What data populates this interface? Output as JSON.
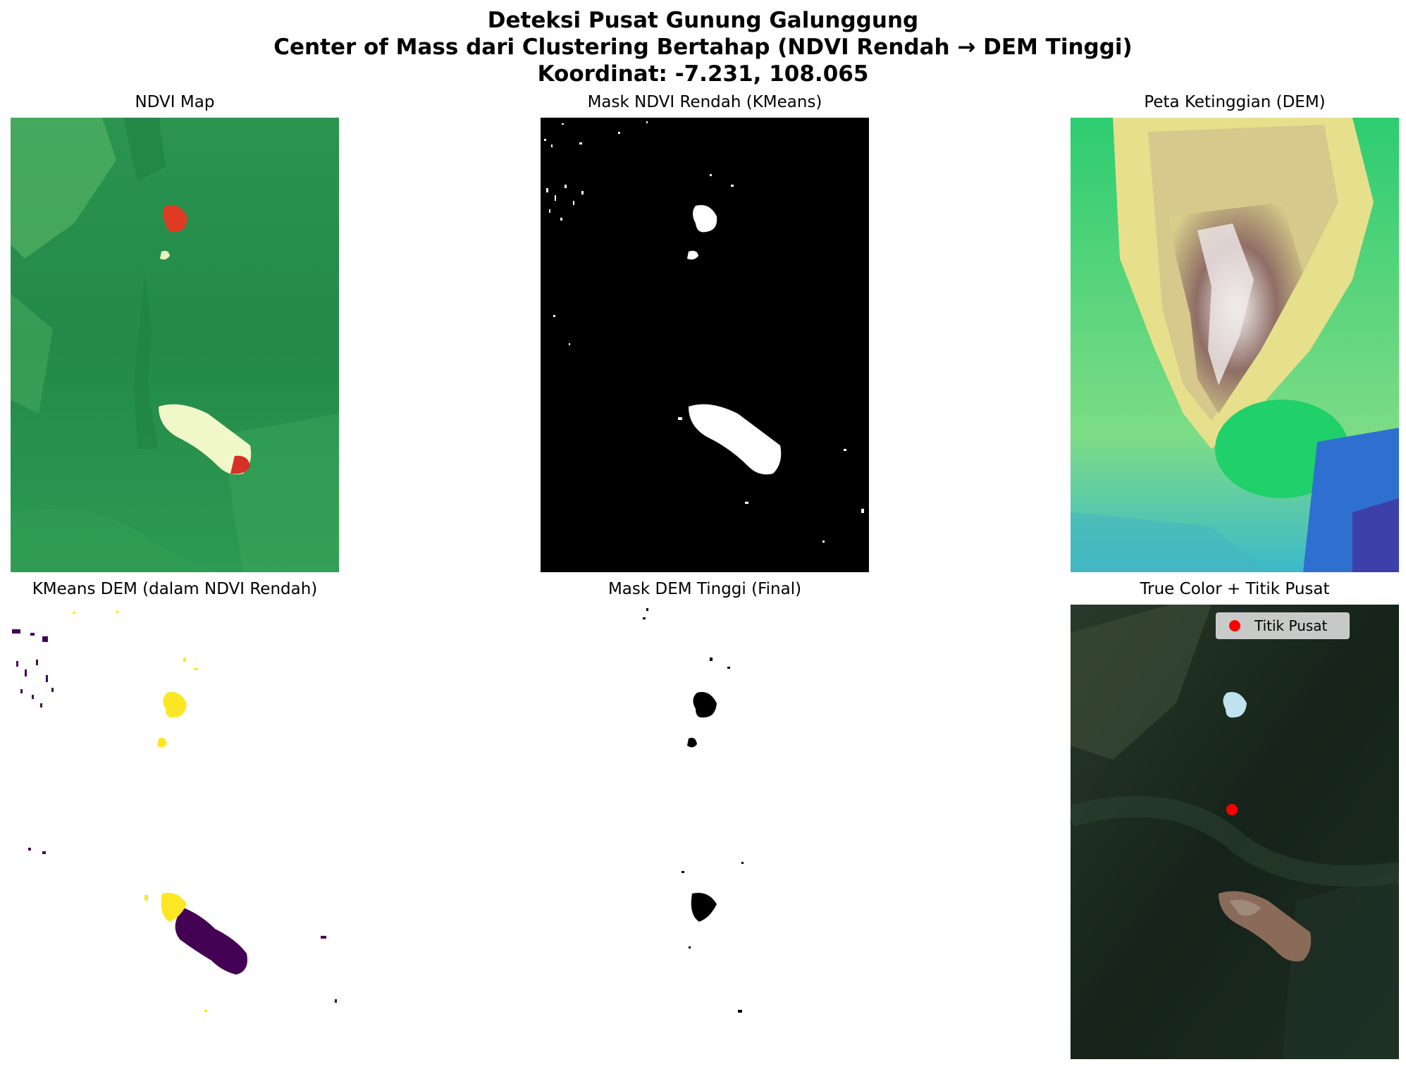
{
  "figure": {
    "title_line1": "Deteksi Pusat Gunung Galunggung",
    "title_line2": "Center of Mass dari Clustering Bertahap (NDVI Rendah → DEM Tinggi)",
    "title_line3": "Koordinat: -7.231, 108.065"
  },
  "panels": [
    {
      "title": "NDVI Map",
      "colormap": "RdYlGn"
    },
    {
      "title": "Mask NDVI Rendah (KMeans)",
      "colormap": "gray"
    },
    {
      "title": "Peta Ketinggian (DEM)",
      "colormap": "terrain"
    },
    {
      "title": "KMeans DEM (dalam NDVI Rendah)",
      "colormap": "viridis"
    },
    {
      "title": "Mask DEM Tinggi (Final)",
      "colormap": "gray"
    },
    {
      "title": "True Color + Titik Pusat",
      "colormap": "rgb"
    }
  ],
  "legend": {
    "label": "Titik Pusat",
    "marker_color": "#ff0000"
  },
  "colors": {
    "ndvi_green": "#2e9e56",
    "ndvi_dark": "#1f7a42",
    "ndvi_red": "#d73027",
    "terrain_low": "#2b4fb0",
    "terrain_mid": "#d8cf8a",
    "terrain_high": "#8a6a60",
    "viridis_yellow": "#fde725",
    "viridis_purple": "#440154",
    "truecolor_bg": "#1d2a1c",
    "center_point": "#ff0000"
  }
}
